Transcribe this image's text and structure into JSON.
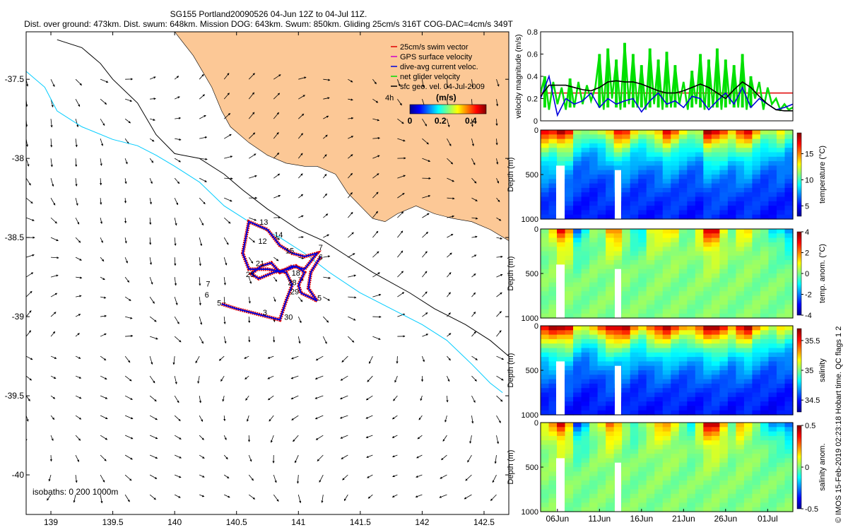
{
  "title_line1": "SG155 Portland20090526 04-Jun 12Z to 04-Jul 11Z.",
  "title_line2": "Dist. over ground: 473km. Dist. swum: 648km. Mission DOG: 643km. Swum: 850km. Gliding 25cm/s 316T COG-DAC=4cm/s 349T",
  "copyright": "© IMOS 15-Feb-2019 02:23:18 Hobart time. QC flags 1  2",
  "colors": {
    "land": "#fcc896",
    "swim": "#e00000",
    "gps": "#cc00cc",
    "dac": "#0000dd",
    "net": "#00dd00",
    "iso200": "#00ccff",
    "iso1000": "#000000"
  },
  "chart_data": [
    {
      "type": "map",
      "xlim": [
        138.8,
        142.7
      ],
      "ylim": [
        -40.25,
        -37.2
      ],
      "xticks": [
        139,
        139.5,
        140,
        140.5,
        141,
        141.5,
        142,
        142.5
      ],
      "xtick_labels": [
        "139",
        "139.5",
        "140",
        "140.5",
        "141",
        "141.5",
        "142",
        "142.5"
      ],
      "yticks": [
        -37.5,
        -38,
        -38.5,
        -39,
        -39.5,
        -40
      ],
      "ytick_labels": [
        "-37.5",
        "-38",
        "-38.5",
        "-39",
        "-39.5",
        "-40"
      ],
      "isobaths_label": "isobaths: 0   200  1000m",
      "legend": [
        {
          "label": "25cm/s swim vector",
          "color": "#e00000"
        },
        {
          "label": "GPS surface velocity",
          "color": "#cc00cc"
        },
        {
          "label": "dive-avg current veloc.",
          "color": "#0000dd"
        },
        {
          "label": "net glider velocity",
          "color": "#00dd00"
        },
        {
          "label": "sfc geo. vel. 04-Jul-2009",
          "color": "#000000"
        }
      ],
      "colorbar": {
        "label": "(m/s)",
        "ticks": [
          "0",
          "0.2",
          "0.4"
        ],
        "note": "4h"
      },
      "coast": [
        [
          140.0,
          -37.2
        ],
        [
          140.15,
          -37.35
        ],
        [
          140.3,
          -37.55
        ],
        [
          140.38,
          -37.7
        ],
        [
          140.45,
          -37.8
        ],
        [
          140.6,
          -37.9
        ],
        [
          140.75,
          -37.98
        ],
        [
          140.9,
          -38.03
        ],
        [
          141.05,
          -38.05
        ],
        [
          141.15,
          -38.05
        ],
        [
          141.3,
          -38.1
        ],
        [
          141.4,
          -38.22
        ],
        [
          141.5,
          -38.3
        ],
        [
          141.6,
          -38.38
        ],
        [
          141.7,
          -38.4
        ],
        [
          141.8,
          -38.35
        ],
        [
          141.95,
          -38.3
        ],
        [
          142.1,
          -38.35
        ],
        [
          142.25,
          -38.38
        ],
        [
          142.4,
          -38.4
        ],
        [
          142.55,
          -38.45
        ],
        [
          142.7,
          -38.52
        ]
      ],
      "iso200": [
        [
          138.8,
          -37.45
        ],
        [
          138.95,
          -37.55
        ],
        [
          139.05,
          -37.7
        ],
        [
          139.25,
          -37.8
        ],
        [
          139.5,
          -37.88
        ],
        [
          139.7,
          -37.92
        ],
        [
          139.85,
          -37.98
        ],
        [
          140.0,
          -38.05
        ],
        [
          140.2,
          -38.15
        ],
        [
          140.4,
          -38.3
        ],
        [
          140.6,
          -38.4
        ],
        [
          140.85,
          -38.5
        ],
        [
          141.05,
          -38.6
        ],
        [
          141.25,
          -38.72
        ],
        [
          141.5,
          -38.85
        ],
        [
          141.75,
          -38.95
        ],
        [
          142.0,
          -39.05
        ],
        [
          142.2,
          -39.15
        ],
        [
          142.4,
          -39.3
        ],
        [
          142.55,
          -39.42
        ],
        [
          142.65,
          -39.48
        ]
      ],
      "iso1000": [
        [
          139.05,
          -37.25
        ],
        [
          139.25,
          -37.3
        ],
        [
          139.4,
          -37.4
        ],
        [
          139.5,
          -37.5
        ],
        [
          139.7,
          -37.65
        ],
        [
          139.85,
          -37.85
        ],
        [
          140.0,
          -37.97
        ],
        [
          140.2,
          -38.0
        ],
        [
          140.4,
          -38.1
        ],
        [
          140.55,
          -38.2
        ],
        [
          140.75,
          -38.32
        ],
        [
          141.0,
          -38.45
        ],
        [
          141.2,
          -38.52
        ],
        [
          141.4,
          -38.62
        ],
        [
          141.6,
          -38.72
        ],
        [
          141.9,
          -38.85
        ],
        [
          142.1,
          -38.95
        ],
        [
          142.35,
          -39.05
        ],
        [
          142.55,
          -39.15
        ],
        [
          142.7,
          -39.25
        ]
      ],
      "track": [
        [
          140.38,
          -38.92
        ],
        [
          140.5,
          -38.95
        ],
        [
          140.65,
          -38.98
        ],
        [
          140.85,
          -39.02
        ],
        [
          140.9,
          -38.9
        ],
        [
          140.95,
          -38.8
        ],
        [
          140.9,
          -38.72
        ],
        [
          140.75,
          -38.7
        ],
        [
          140.6,
          -38.7
        ],
        [
          140.55,
          -38.6
        ],
        [
          140.6,
          -38.4
        ],
        [
          140.75,
          -38.45
        ],
        [
          140.85,
          -38.55
        ],
        [
          140.95,
          -38.6
        ],
        [
          141.05,
          -38.62
        ],
        [
          141.15,
          -38.6
        ],
        [
          141.1,
          -38.65
        ],
        [
          141.05,
          -38.7
        ],
        [
          140.95,
          -38.68
        ],
        [
          140.85,
          -38.72
        ],
        [
          140.78,
          -38.66
        ],
        [
          140.7,
          -38.68
        ],
        [
          140.62,
          -38.73
        ],
        [
          140.68,
          -38.76
        ],
        [
          140.8,
          -38.72
        ],
        [
          140.92,
          -38.7
        ],
        [
          140.98,
          -38.68
        ],
        [
          141.05,
          -38.72
        ],
        [
          141.0,
          -38.8
        ],
        [
          141.02,
          -38.85
        ],
        [
          141.1,
          -38.88
        ],
        [
          141.15,
          -38.9
        ],
        [
          141.08,
          -38.82
        ],
        [
          141.1,
          -38.72
        ],
        [
          141.18,
          -38.62
        ]
      ],
      "labels": [
        {
          "text": "13",
          "lon": 140.72,
          "lat": -38.42
        },
        {
          "text": "14",
          "lon": 140.84,
          "lat": -38.5
        },
        {
          "text": "12",
          "lon": 140.71,
          "lat": -38.54
        },
        {
          "text": "15",
          "lon": 140.93,
          "lat": -38.6
        },
        {
          "text": "7",
          "lon": 141.18,
          "lat": -38.58
        },
        {
          "text": "6",
          "lon": 141.18,
          "lat": -38.64
        },
        {
          "text": "21",
          "lon": 140.69,
          "lat": -38.68
        },
        {
          "text": "25",
          "lon": 140.61,
          "lat": -38.75
        },
        {
          "text": "18",
          "lon": 140.98,
          "lat": -38.74
        },
        {
          "text": "28",
          "lon": 140.95,
          "lat": -38.8
        },
        {
          "text": "29",
          "lon": 140.97,
          "lat": -38.86
        },
        {
          "text": "5",
          "lon": 141.17,
          "lat": -38.9
        },
        {
          "text": "7",
          "lon": 140.27,
          "lat": -38.81
        },
        {
          "text": "6",
          "lon": 140.26,
          "lat": -38.88
        },
        {
          "text": "5",
          "lon": 140.36,
          "lat": -38.93
        },
        {
          "text": "3",
          "lon": 140.73,
          "lat": -38.99
        },
        {
          "text": "30",
          "lon": 140.92,
          "lat": -39.02
        }
      ]
    },
    {
      "type": "line",
      "ylabel": "velocity magnitude (m/s)",
      "ylim": [
        0,
        0.8
      ],
      "yticks": [
        0,
        0.2,
        0.4,
        0.6,
        0.8
      ],
      "ytick_labels": [
        "0",
        "0.2",
        "0.4",
        "0.6",
        "0.8"
      ],
      "xlim_days": [
        0,
        30
      ],
      "reference_speed": 0.25,
      "series": [
        {
          "name": "net glider speed",
          "color": "#00e000",
          "x": [
            0,
            0.5,
            1,
            1.5,
            2,
            2.5,
            3,
            3.5,
            4,
            4.5,
            5,
            5.5,
            6,
            6.5,
            7,
            7.5,
            8,
            8.5,
            9,
            9.5,
            10,
            10.5,
            11,
            11.5,
            12,
            12.5,
            13,
            13.5,
            14,
            14.5,
            15,
            15.5,
            16,
            16.5,
            17,
            17.5,
            18,
            18.5,
            19,
            19.5,
            20,
            20.5,
            21,
            21.5,
            22,
            22.5,
            23,
            23.5,
            24,
            24.5,
            25,
            25.5,
            26,
            26.5,
            27,
            27.5,
            28,
            28.5,
            29,
            29.5,
            30
          ],
          "values": [
            0.25,
            0.4,
            0.1,
            0.35,
            0.15,
            0.3,
            0.1,
            0.38,
            0.12,
            0.35,
            0.15,
            0.32,
            0.18,
            0.3,
            0.6,
            0.1,
            0.65,
            0.2,
            0.55,
            0.1,
            0.7,
            0.15,
            0.6,
            0.12,
            0.5,
            0.1,
            0.65,
            0.15,
            0.55,
            0.1,
            0.62,
            0.12,
            0.5,
            0.15,
            0.35,
            0.1,
            0.45,
            0.15,
            0.6,
            0.1,
            0.55,
            0.12,
            0.65,
            0.1,
            0.55,
            0.15,
            0.5,
            0.12,
            0.6,
            0.1,
            0.4,
            0.2,
            0.35,
            0.1,
            0.3,
            0.15,
            0.2,
            0.1,
            0.15,
            0.1,
            0.12
          ]
        },
        {
          "name": "dive-avg current speed",
          "color": "#0000dd",
          "x": [
            0,
            1,
            2,
            3,
            4,
            5,
            6,
            7,
            8,
            9,
            10,
            11,
            12,
            13,
            14,
            15,
            16,
            17,
            18,
            19,
            20,
            21,
            22,
            23,
            24,
            25,
            26,
            27,
            28,
            29,
            30
          ],
          "values": [
            0.2,
            0.4,
            0.05,
            0.2,
            0.15,
            0.18,
            0.25,
            0.12,
            0.2,
            0.15,
            0.18,
            0.2,
            0.08,
            0.18,
            0.25,
            0.15,
            0.18,
            0.12,
            0.22,
            0.2,
            0.1,
            0.18,
            0.25,
            0.15,
            0.3,
            0.12,
            0.2,
            0.15,
            0.1,
            0.12,
            0.15
          ]
        },
        {
          "name": "sfc geostrophic speed",
          "color": "#000000",
          "x": [
            0,
            1,
            2,
            3,
            4,
            5,
            6,
            7,
            8,
            9,
            10,
            11,
            12,
            13,
            14,
            15,
            16,
            17,
            18,
            19,
            20,
            21,
            22,
            23,
            24,
            25,
            26,
            27,
            28,
            29,
            30
          ],
          "values": [
            0.22,
            0.32,
            0.32,
            0.32,
            0.3,
            0.28,
            0.27,
            0.3,
            0.35,
            0.36,
            0.35,
            0.35,
            0.33,
            0.3,
            0.27,
            0.25,
            0.25,
            0.27,
            0.3,
            0.33,
            0.3,
            0.25,
            0.2,
            0.28,
            0.35,
            0.3,
            0.22,
            0.15,
            0.1,
            0.09,
            0.09
          ]
        }
      ]
    },
    {
      "type": "heatmap",
      "variable": "temperature",
      "colorbar_label": "temperature (°C)",
      "clim": [
        3,
        19
      ],
      "cticks": [
        "5",
        "10",
        "15"
      ],
      "ylabel": "Depth (m)",
      "ylim": [
        0,
        1000
      ],
      "yticks": [
        "0",
        "500",
        "1000"
      ],
      "surface_values": [
        17,
        16,
        18,
        17,
        12,
        11,
        11,
        12,
        14,
        17,
        16,
        13,
        12,
        13,
        14,
        17,
        15,
        13,
        12,
        12,
        18,
        17,
        16,
        14,
        16,
        17,
        14,
        12,
        12,
        13,
        11
      ],
      "deep_value": 5
    },
    {
      "type": "heatmap",
      "variable": "temperature anomaly",
      "colorbar_label": "temp. anom. (°C)",
      "clim": [
        -4,
        4
      ],
      "cticks": [
        "4",
        "2",
        "0",
        "-2",
        "-4"
      ],
      "ylabel": "Depth (m)",
      "ylim": [
        0,
        1000
      ],
      "yticks": [
        "0",
        "500",
        "1000"
      ],
      "surface_values": [
        0,
        1,
        3,
        2,
        -2,
        -1,
        0,
        0,
        2,
        2,
        0,
        -1,
        -1,
        1,
        1,
        1,
        1,
        0,
        0,
        1,
        3,
        3,
        1,
        0,
        1,
        1,
        0,
        0,
        -1,
        -1,
        -2
      ],
      "deep_value": 0
    },
    {
      "type": "heatmap",
      "variable": "salinity",
      "colorbar_label": "salinity",
      "clim": [
        34.3,
        35.7
      ],
      "cticks": [
        "35.5",
        "35",
        "34.5"
      ],
      "ylabel": "Depth (m)",
      "ylim": [
        0,
        1000
      ],
      "yticks": [
        "0",
        "500",
        "1000"
      ],
      "surface_values": [
        35.5,
        35.6,
        35.6,
        35.6,
        35.2,
        35.1,
        35.2,
        35.4,
        35.6,
        35.6,
        35.6,
        35.3,
        35.2,
        35.4,
        35.5,
        35.6,
        35.4,
        35.3,
        35.3,
        35.4,
        35.6,
        35.6,
        35.5,
        35.3,
        35.5,
        35.6,
        35.3,
        35.2,
        35.1,
        35.2,
        35.1
      ],
      "deep_value": 34.45
    },
    {
      "type": "heatmap",
      "variable": "salinity anomaly",
      "colorbar_label": "salinity anom.",
      "clim": [
        -0.5,
        0.5
      ],
      "cticks": [
        "0.5",
        "0",
        "-0.5"
      ],
      "ylabel": "Depth (m)",
      "ylim": [
        0,
        1000
      ],
      "yticks": [
        "0",
        "500",
        "1000"
      ],
      "surface_values": [
        0.1,
        0.2,
        0.4,
        0.2,
        -0.3,
        -0.2,
        0,
        0.1,
        0.3,
        0.2,
        0,
        -0.1,
        0,
        0.1,
        0.2,
        0.2,
        0.1,
        0,
        -0.1,
        0.1,
        0.4,
        0.4,
        0.2,
        0,
        0.2,
        0.1,
        0,
        -0.1,
        -0.2,
        -0.2,
        -0.3
      ],
      "deep_value": 0,
      "xtick_labels": [
        "06Jun",
        "11Jun",
        "16Jun",
        "21Jun",
        "26Jun",
        "01Jul"
      ],
      "xtick_days": [
        2,
        7,
        12,
        17,
        22,
        27
      ]
    }
  ]
}
